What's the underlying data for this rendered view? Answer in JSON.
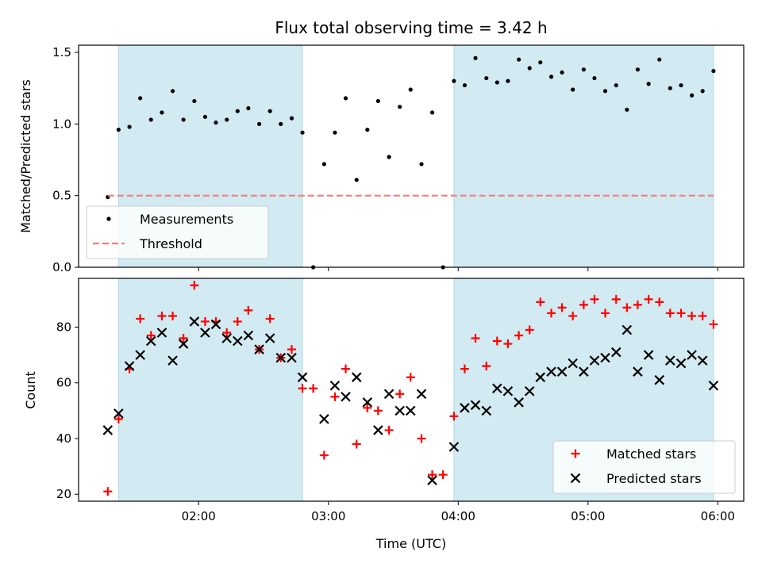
{
  "chart_data": [
    {
      "type": "scatter",
      "panel": "top",
      "title": "Flux total observing time = 3.42 h",
      "ylabel": "Matched/Predicted stars",
      "xlim": [
        1.075,
        6.2
      ],
      "ylim": [
        0,
        1.55
      ],
      "yticks": [
        0,
        0.5,
        1.0,
        1.5
      ],
      "ytick_labels": [
        "0.0",
        "0.5",
        "1.0",
        "1.5"
      ],
      "shaded_regions": [
        [
          1.383,
          2.8
        ],
        [
          3.967,
          5.967
        ]
      ],
      "shade_color": "#add8e6",
      "legend": {
        "placement": "lower-left",
        "entries": [
          "Measurements",
          "Threshold"
        ]
      },
      "series": [
        {
          "name": "Measurements",
          "marker": "dot",
          "color": "#000000",
          "x": [
            1.3,
            1.383,
            1.467,
            1.55,
            1.633,
            1.717,
            1.8,
            1.883,
            1.967,
            2.05,
            2.133,
            2.217,
            2.3,
            2.383,
            2.467,
            2.55,
            2.633,
            2.717,
            2.8,
            2.883,
            2.967,
            3.05,
            3.133,
            3.217,
            3.3,
            3.383,
            3.467,
            3.55,
            3.633,
            3.717,
            3.8,
            3.883,
            3.967,
            4.05,
            4.133,
            4.217,
            4.3,
            4.383,
            4.467,
            4.55,
            4.633,
            4.717,
            4.8,
            4.883,
            4.967,
            5.05,
            5.133,
            5.217,
            5.3,
            5.383,
            5.467,
            5.55,
            5.633,
            5.717,
            5.8,
            5.883,
            5.967
          ],
          "y": [
            0.49,
            0.96,
            0.98,
            1.18,
            1.03,
            1.08,
            1.23,
            1.03,
            1.16,
            1.05,
            1.01,
            1.03,
            1.09,
            1.11,
            1.0,
            1.09,
            1.0,
            1.04,
            0.94,
            0.0,
            0.72,
            0.94,
            1.18,
            0.61,
            0.96,
            1.16,
            0.77,
            1.12,
            1.24,
            0.72,
            1.08,
            0.0,
            1.3,
            1.27,
            1.46,
            1.32,
            1.29,
            1.3,
            1.45,
            1.39,
            1.43,
            1.33,
            1.36,
            1.24,
            1.38,
            1.32,
            1.23,
            1.27,
            1.1,
            1.38,
            1.28,
            1.45,
            1.25,
            1.27,
            1.2,
            1.23,
            1.37
          ]
        },
        {
          "name": "Threshold",
          "marker": "dashed-line",
          "color": "#f08080",
          "x": [
            1.3,
            5.967
          ],
          "y": [
            0.5,
            0.5
          ]
        }
      ]
    },
    {
      "type": "scatter",
      "panel": "bottom",
      "xlabel": "Time (UTC)",
      "ylabel": "Count",
      "xlim": [
        1.075,
        6.2
      ],
      "ylim": [
        17.5,
        97.5
      ],
      "yticks": [
        20,
        40,
        60,
        80
      ],
      "ytick_labels": [
        "20",
        "40",
        "60",
        "80"
      ],
      "xticks": [
        2,
        3,
        4,
        5,
        6
      ],
      "xtick_labels": [
        "02:00",
        "03:00",
        "04:00",
        "05:00",
        "06:00"
      ],
      "shaded_regions": [
        [
          1.383,
          2.8
        ],
        [
          3.967,
          5.967
        ]
      ],
      "shade_color": "#add8e6",
      "legend": {
        "placement": "lower-right",
        "entries": [
          "Matched stars",
          "Predicted stars"
        ]
      },
      "series": [
        {
          "name": "Matched stars",
          "marker": "plus",
          "color": "#ff0000",
          "x": [
            1.3,
            1.383,
            1.467,
            1.55,
            1.633,
            1.717,
            1.8,
            1.883,
            1.967,
            2.05,
            2.133,
            2.217,
            2.3,
            2.383,
            2.467,
            2.55,
            2.633,
            2.717,
            2.8,
            2.883,
            2.967,
            3.05,
            3.133,
            3.217,
            3.3,
            3.383,
            3.467,
            3.55,
            3.633,
            3.717,
            3.8,
            3.883,
            3.967,
            4.05,
            4.133,
            4.217,
            4.3,
            4.383,
            4.467,
            4.55,
            4.633,
            4.717,
            4.8,
            4.883,
            4.967,
            5.05,
            5.133,
            5.217,
            5.3,
            5.383,
            5.467,
            5.55,
            5.633,
            5.717,
            5.8,
            5.883,
            5.967
          ],
          "y": [
            21,
            47,
            65,
            83,
            77,
            84,
            84,
            76,
            95,
            82,
            82,
            78,
            82,
            86,
            72,
            83,
            69,
            72,
            58,
            58,
            34,
            55,
            65,
            38,
            51,
            50,
            43,
            56,
            62,
            40,
            27,
            27,
            48,
            65,
            76,
            66,
            75,
            74,
            77,
            79,
            89,
            85,
            87,
            84,
            88,
            90,
            85,
            90,
            87,
            88,
            90,
            89,
            85,
            85,
            84,
            84,
            81
          ]
        },
        {
          "name": "Predicted stars",
          "marker": "x",
          "color": "#000000",
          "x": [
            1.3,
            1.383,
            1.467,
            1.55,
            1.633,
            1.717,
            1.8,
            1.883,
            1.967,
            2.05,
            2.133,
            2.217,
            2.3,
            2.383,
            2.467,
            2.55,
            2.633,
            2.717,
            2.8,
            2.967,
            3.05,
            3.133,
            3.217,
            3.3,
            3.383,
            3.467,
            3.55,
            3.633,
            3.717,
            3.8,
            3.967,
            4.05,
            4.133,
            4.217,
            4.3,
            4.383,
            4.467,
            4.55,
            4.633,
            4.717,
            4.8,
            4.883,
            4.967,
            5.05,
            5.133,
            5.217,
            5.3,
            5.383,
            5.467,
            5.55,
            5.633,
            5.717,
            5.8,
            5.883,
            5.967
          ],
          "y": [
            43,
            49,
            66,
            70,
            75,
            78,
            68,
            74,
            82,
            78,
            81,
            76,
            75,
            77,
            72,
            76,
            69,
            69,
            62,
            47,
            59,
            55,
            62,
            53,
            43,
            56,
            50,
            50,
            56,
            25,
            37,
            51,
            52,
            50,
            58,
            57,
            53,
            57,
            62,
            64,
            64,
            67,
            64,
            68,
            69,
            71,
            79,
            64,
            70,
            61,
            68,
            67,
            70,
            68,
            59
          ]
        }
      ]
    }
  ]
}
